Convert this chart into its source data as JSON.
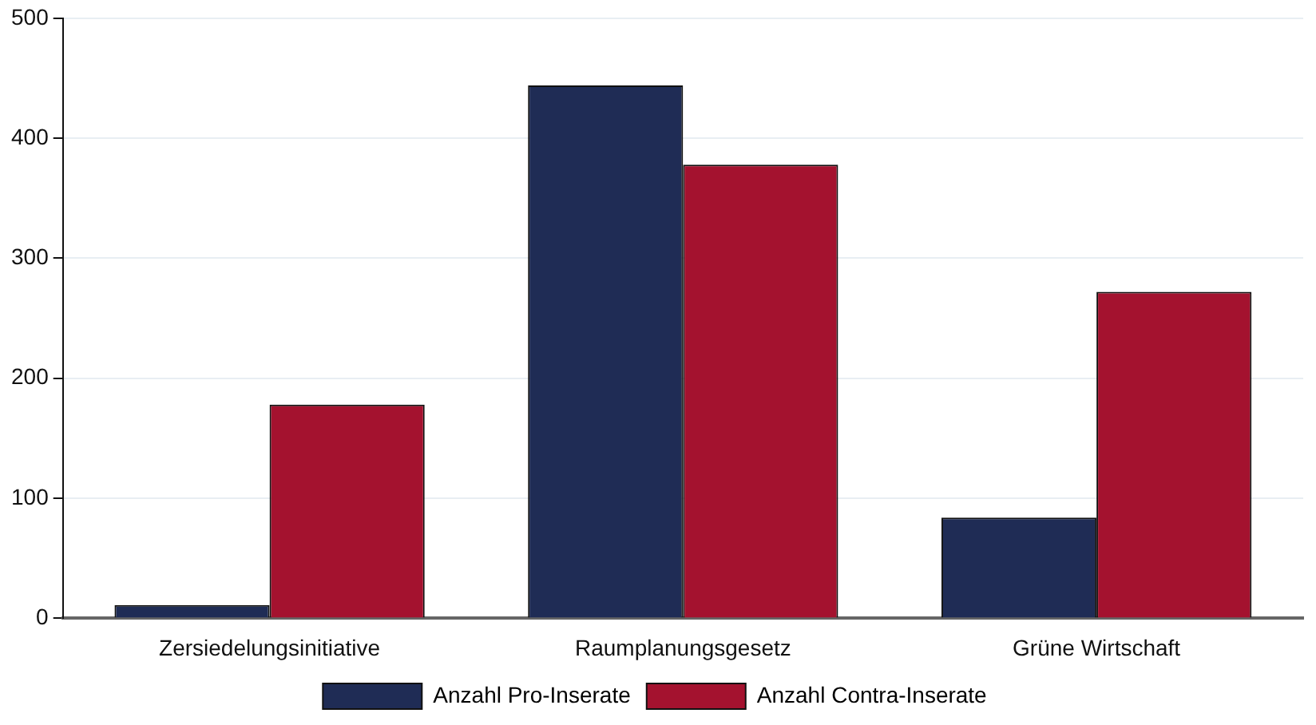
{
  "chart_data": {
    "type": "bar",
    "categories": [
      "Zersiedelungsinitiative",
      "Raumplanungsgesetz",
      "Grüne Wirtschaft"
    ],
    "series": [
      {
        "name": "Anzahl Pro-Inserate",
        "color": "#1f2c55",
        "values": [
          11,
          444,
          84
        ]
      },
      {
        "name": "Anzahl Contra-Inserate",
        "color": "#a4122f",
        "values": [
          178,
          378,
          272
        ]
      }
    ],
    "ylim": [
      0,
      500
    ],
    "yticks": [
      0,
      100,
      200,
      300,
      400,
      500
    ],
    "grid": "y",
    "legend": "bottom"
  }
}
